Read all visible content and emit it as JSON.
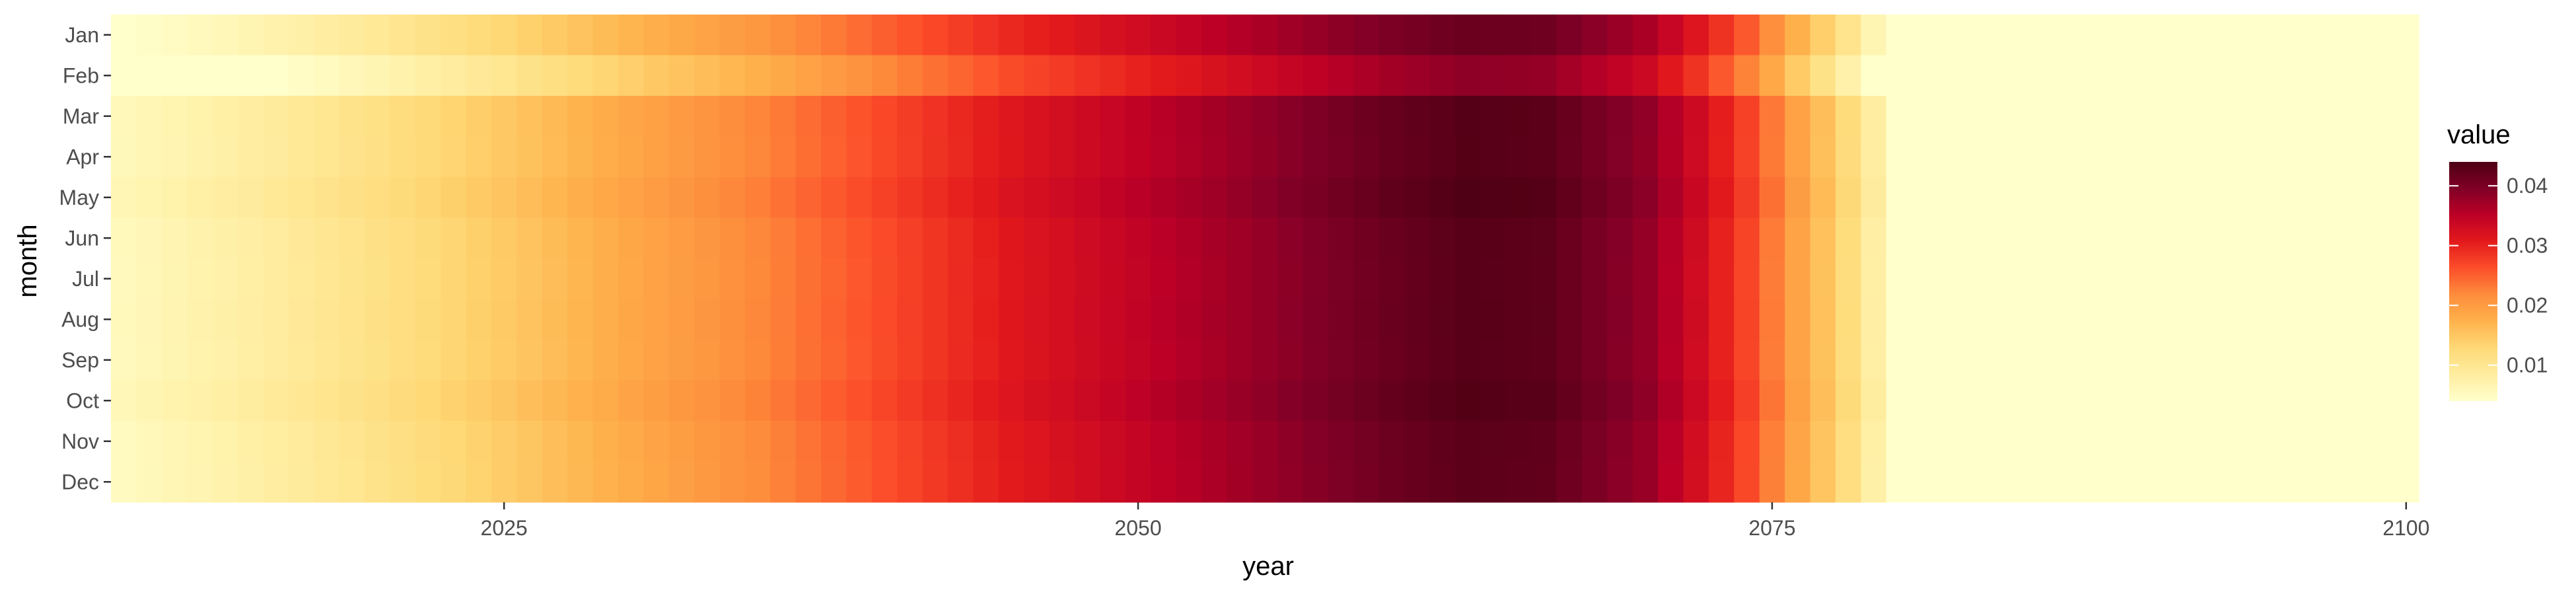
{
  "chart_data": {
    "type": "heatmap",
    "title": "",
    "xlabel": "year",
    "ylabel": "month",
    "x_range": [
      2009.5,
      2100.5
    ],
    "x_ticks": [
      2025,
      2050,
      2075,
      2100
    ],
    "months": [
      "Jan",
      "Feb",
      "Mar",
      "Apr",
      "May",
      "Jun",
      "Jul",
      "Aug",
      "Sep",
      "Oct",
      "Nov",
      "Dec"
    ],
    "years_start": 2010,
    "years_end": 2100,
    "legend": {
      "title": "value",
      "placement": "right",
      "ticks": [
        0.01,
        0.02,
        0.03,
        0.04
      ],
      "tick_labels": [
        "0.01",
        "0.02",
        "0.03",
        "0.04"
      ],
      "range": [
        0.004,
        0.044
      ]
    },
    "colors": {
      "low": "#FFFFCC",
      "palette": [
        "#FFFFCC",
        "#FFEDA0",
        "#FED976",
        "#FEB24C",
        "#FD8D3C",
        "#FC4E2A",
        "#E31A1C",
        "#BD0026",
        "#800026",
        "#4D0013"
      ],
      "background": "#FFFFFF",
      "axis_text": "#4D4D4D",
      "axis_title": "#000000"
    },
    "profile": {
      "description_points_year": [
        2010,
        2015,
        2020,
        2025,
        2030,
        2035,
        2040,
        2045,
        2050,
        2055,
        2060,
        2063,
        2066,
        2070,
        2072,
        2074,
        2076,
        2078,
        2079
      ],
      "description_points_value": [
        0.0055,
        0.008,
        0.011,
        0.0145,
        0.0185,
        0.022,
        0.0265,
        0.031,
        0.0345,
        0.038,
        0.0415,
        0.043,
        0.0425,
        0.038,
        0.033,
        0.027,
        0.019,
        0.012,
        0.008
      ],
      "after_year": 2080,
      "after_value": 0.004
    },
    "month_offsets": [
      -0.0015,
      -0.0045,
      0.0003,
      0.0002,
      0.0008,
      0.0001,
      0.0,
      0.0001,
      0.0,
      0.0005,
      -0.0002,
      -0.0003
    ]
  }
}
